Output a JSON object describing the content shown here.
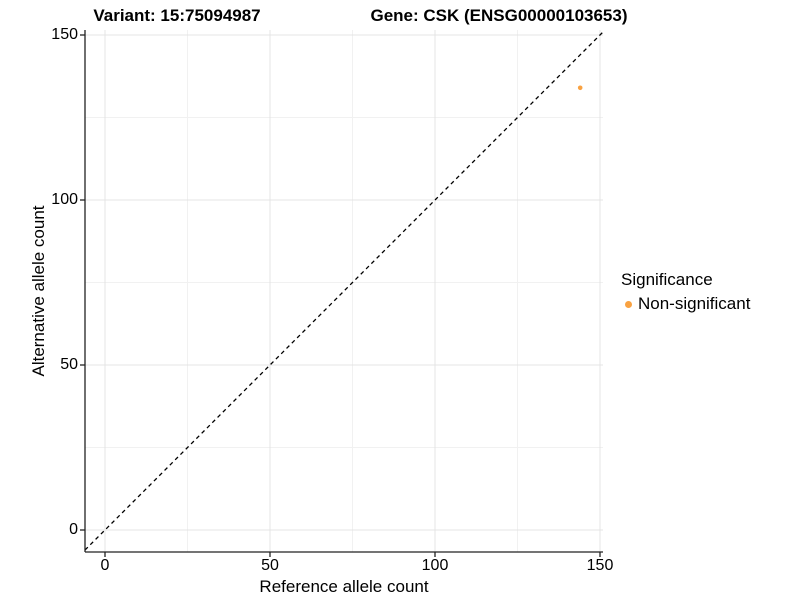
{
  "chart_data": {
    "type": "scatter",
    "titles": {
      "variant": "Variant: 15:75094987",
      "gene": "Gene: CSK (ENSG00000103653)"
    },
    "xlabel": "Reference allele count",
    "ylabel": "Alternative allele count",
    "x_ticks": [
      0,
      50,
      100,
      150
    ],
    "y_ticks": [
      0,
      50,
      100,
      150
    ],
    "x_tick_labels": [
      "0",
      "50",
      "100",
      "150"
    ],
    "y_tick_labels": [
      "0",
      "50",
      "100",
      "150"
    ],
    "xlim": [
      -6,
      151
    ],
    "ylim": [
      -7,
      151
    ],
    "grid": "major+minor",
    "series": [
      {
        "name": "Non-significant",
        "color": "#F9A242",
        "points": [
          {
            "x": 144,
            "y": 134
          }
        ]
      }
    ],
    "reference_line": {
      "type": "abline",
      "slope": 1,
      "intercept": 0,
      "style": "dashed",
      "color": "#000000"
    },
    "legend": {
      "title": "Significance",
      "position": "right",
      "items": [
        {
          "label": "Non-significant",
          "color": "#F9A242"
        }
      ]
    }
  },
  "colors": {
    "background": "#FFFFFF",
    "grid_major": "#E4E4E4",
    "grid_minor": "#F1F1F1",
    "axis": "#222222",
    "point": "#F9A242"
  }
}
